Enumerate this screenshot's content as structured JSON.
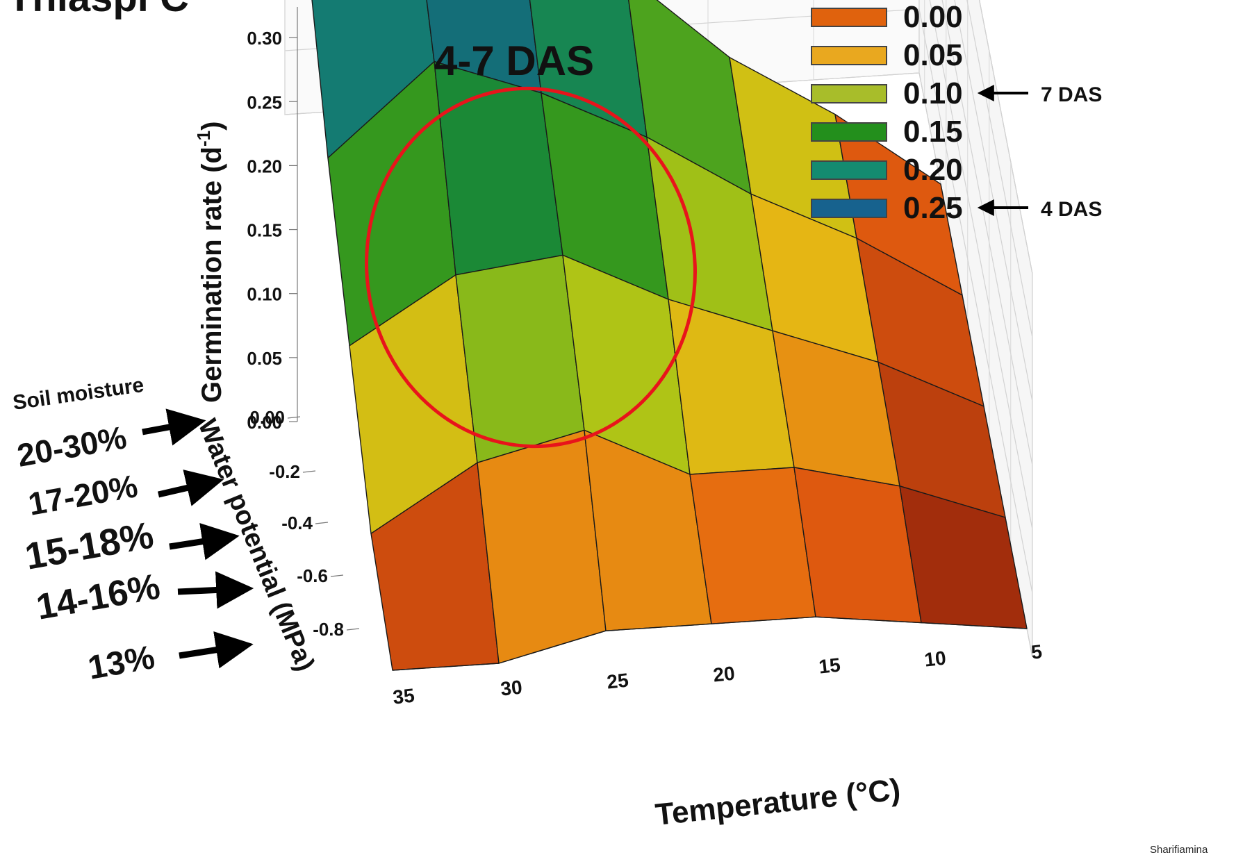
{
  "chart_data": {
    "type": "surface",
    "title_fragment": "of Thlaspi C",
    "annotation": "4-7 DAS",
    "z_axis": {
      "label": "Germination rate (d",
      "label_superscript": "-1",
      "label_close": ")",
      "ticks": [
        "0.00",
        "0.05",
        "0.10",
        "0.15",
        "0.20",
        "0.25",
        "0.30"
      ],
      "range": [
        0,
        0.3
      ]
    },
    "y_axis": {
      "label": "Water potential (MPa)",
      "ticks": [
        "0.00",
        "-0.2",
        "-0.4",
        "-0.6",
        "-0.8"
      ],
      "range": [
        -0.8,
        0
      ]
    },
    "x_axis": {
      "label": "Temperature (°C)",
      "ticks": [
        "35",
        "30",
        "25",
        "20",
        "15",
        "10",
        "5"
      ]
    },
    "temperatures": [
      35,
      30,
      25,
      20,
      15,
      10,
      5
    ],
    "water_potentials": [
      0.0,
      -0.2,
      -0.4,
      -0.6,
      -0.8
    ],
    "rates": [
      [
        0.22,
        0.26,
        0.23,
        0.18,
        0.11,
        0.06,
        0.0
      ],
      [
        0.14,
        0.21,
        0.18,
        0.14,
        0.09,
        0.05,
        0.0
      ],
      [
        0.08,
        0.13,
        0.14,
        0.1,
        0.07,
        0.04,
        0.0
      ],
      [
        0.02,
        0.07,
        0.09,
        0.05,
        0.05,
        0.03,
        0.0
      ],
      [
        0.0,
        0.0,
        0.02,
        0.02,
        0.02,
        0.01,
        0.0
      ]
    ],
    "legend": [
      {
        "label": "0.00",
        "color": "#e0620d"
      },
      {
        "label": "0.05",
        "color": "#e9a81f",
        "note": ""
      },
      {
        "label": "0.10",
        "color": "#a8bd2a",
        "note": "7 DAS"
      },
      {
        "label": "0.15",
        "color": "#238f1c",
        "note": ""
      },
      {
        "label": "0.20",
        "color": "#148b70",
        "note": ""
      },
      {
        "label": "0.25",
        "color": "#17628e",
        "note": "4 DAS"
      }
    ],
    "soil_moisture": {
      "label": "Soil moisture",
      "levels": [
        "20-30%",
        "17-20%",
        "15-18%",
        "14-16%",
        "13%"
      ]
    },
    "credit": "Sharifiamina"
  }
}
